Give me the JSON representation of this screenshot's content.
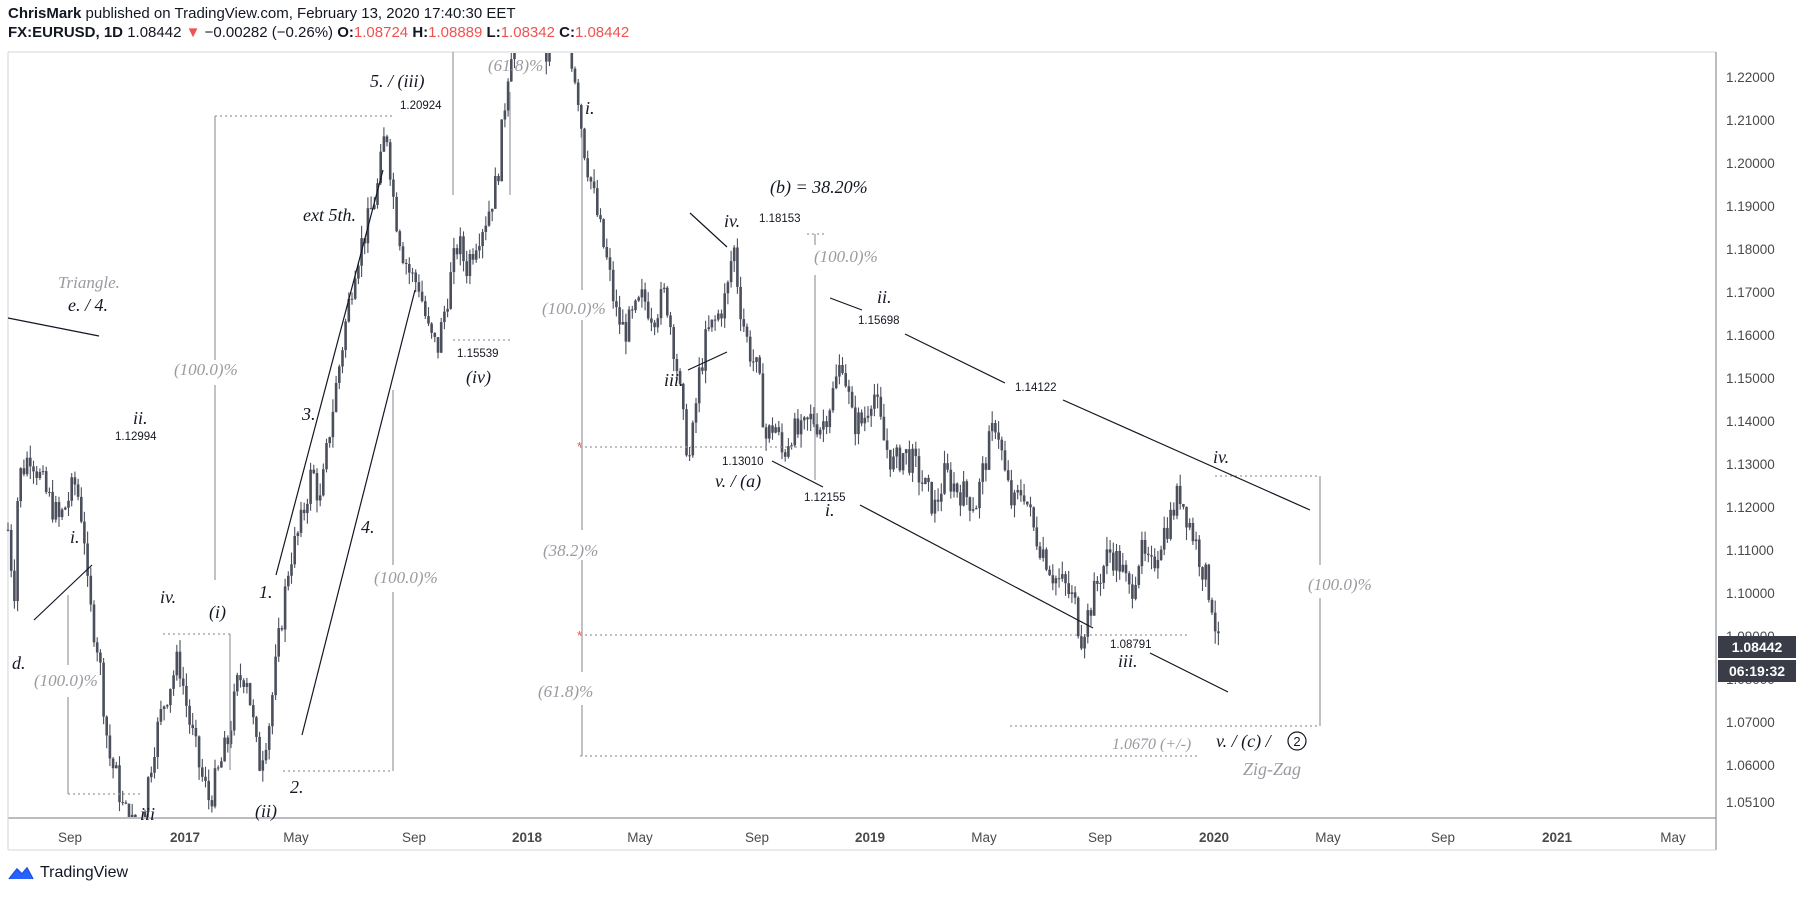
{
  "header": {
    "author": "ChrisMark",
    "published": "published on TradingView.com, February 13, 2020 17:40:30 EET",
    "symbol": "FX:EURUSD, 1D",
    "last": "1.08442",
    "arrow": "▼",
    "change": "−0.00282 (−0.26%)",
    "o_label": "O:",
    "o_value": "1.08724",
    "h_label": "H:",
    "h_value": "1.08889",
    "l_label": "L:",
    "l_value": "1.08342",
    "c_label": "C:",
    "c_value": "1.08442"
  },
  "footer": {
    "brand": "TradingView",
    "logo_icon": "tradingview-logo-icon"
  },
  "price_badges": {
    "last_price": "1.08442",
    "countdown": "06:19:32"
  },
  "colors": {
    "candles": "#4b4f5c",
    "accent_red": "#ef5350",
    "grid": "#ffffff",
    "percent_text": "#9a9aa0",
    "badge_bg": "#3a3d48"
  },
  "chart_data": {
    "type": "candlestick",
    "symbol": "FX:EURUSD",
    "interval": "1D",
    "y_axis_labels": [
      "1.22000",
      "1.21000",
      "1.20000",
      "1.19000",
      "1.18000",
      "1.17000",
      "1.16000",
      "1.15000",
      "1.14000",
      "1.13000",
      "1.12000",
      "1.11000",
      "1.10000",
      "1.09000",
      "1.08000",
      "1.07000",
      "1.06000",
      "1.05100"
    ],
    "x_axis_labels": [
      "Sep",
      "2017",
      "May",
      "Sep",
      "2018",
      "May",
      "Sep",
      "2019",
      "May",
      "Sep",
      "2020",
      "May",
      "Sep",
      "2021",
      "May"
    ],
    "ylim": [
      1.043,
      1.2275
    ],
    "price_path": [
      [
        0,
        1.115
      ],
      [
        0.3,
        1.1
      ],
      [
        0.5,
        1.127
      ],
      [
        1.1,
        1.133
      ],
      [
        1.8,
        1.124
      ],
      [
        2.5,
        1.117
      ],
      [
        3.0,
        1.123
      ],
      [
        3.3,
        1.126
      ],
      [
        3.7,
        1.115
      ],
      [
        3.9,
        1.099
      ],
      [
        4.4,
        1.087
      ],
      [
        4.9,
        1.063
      ],
      [
        5.3,
        1.057
      ],
      [
        5.6,
        1.05
      ],
      [
        6.0,
        1.047
      ],
      [
        6.3,
        1.043
      ],
      [
        6.6,
        1.05
      ],
      [
        7.1,
        1.065
      ],
      [
        7.6,
        1.075
      ],
      [
        8.3,
        1.085
      ],
      [
        8.8,
        1.071
      ],
      [
        9.4,
        1.058
      ],
      [
        9.8,
        1.052
      ],
      [
        10.2,
        1.058
      ],
      [
        10.7,
        1.066
      ],
      [
        11.2,
        1.08
      ],
      [
        11.6,
        1.082
      ],
      [
        12.2,
        1.06
      ],
      [
        12.7,
        1.07
      ],
      [
        13.2,
        1.09
      ],
      [
        13.7,
        1.108
      ],
      [
        14.2,
        1.115
      ],
      [
        14.8,
        1.129
      ],
      [
        15.2,
        1.121
      ],
      [
        15.7,
        1.14
      ],
      [
        16.4,
        1.162
      ],
      [
        16.9,
        1.177
      ],
      [
        17.5,
        1.186
      ],
      [
        18.0,
        1.195
      ],
      [
        18.4,
        1.209
      ],
      [
        18.8,
        1.19
      ],
      [
        19.2,
        1.18
      ],
      [
        19.6,
        1.174
      ],
      [
        20.0,
        1.172
      ],
      [
        20.5,
        1.16
      ],
      [
        20.9,
        1.157
      ],
      [
        21.4,
        1.17
      ],
      [
        21.9,
        1.182
      ],
      [
        22.3,
        1.176
      ],
      [
        22.8,
        1.183
      ],
      [
        23.3,
        1.188
      ],
      [
        23.8,
        1.196
      ],
      [
        24.4,
        1.225
      ],
      [
        25.0,
        1.24
      ],
      [
        25.5,
        1.239
      ],
      [
        26.2,
        1.225
      ],
      [
        26.8,
        1.235
      ],
      [
        27.3,
        1.228
      ],
      [
        27.7,
        1.218
      ],
      [
        28.0,
        1.205
      ],
      [
        28.4,
        1.195
      ],
      [
        28.8,
        1.185
      ],
      [
        29.2,
        1.176
      ],
      [
        29.6,
        1.165
      ],
      [
        30.0,
        1.161
      ],
      [
        30.5,
        1.165
      ],
      [
        30.9,
        1.169
      ],
      [
        31.4,
        1.165
      ],
      [
        32.0,
        1.17
      ],
      [
        32.5,
        1.155
      ],
      [
        32.9,
        1.138
      ],
      [
        33.2,
        1.131
      ],
      [
        33.6,
        1.15
      ],
      [
        34.0,
        1.16
      ],
      [
        34.5,
        1.164
      ],
      [
        35.0,
        1.17
      ],
      [
        35.3,
        1.182
      ],
      [
        35.6,
        1.168
      ],
      [
        36.0,
        1.158
      ],
      [
        36.5,
        1.151
      ],
      [
        36.9,
        1.136
      ],
      [
        37.3,
        1.14
      ],
      [
        37.7,
        1.132
      ],
      [
        38.1,
        1.138
      ],
      [
        38.6,
        1.137
      ],
      [
        39.1,
        1.141
      ],
      [
        39.6,
        1.139
      ],
      [
        40.1,
        1.146
      ],
      [
        40.6,
        1.155
      ],
      [
        41.1,
        1.14
      ],
      [
        41.6,
        1.14
      ],
      [
        42.1,
        1.148
      ],
      [
        42.6,
        1.136
      ],
      [
        43.1,
        1.13
      ],
      [
        43.6,
        1.133
      ],
      [
        44.1,
        1.13
      ],
      [
        44.6,
        1.125
      ],
      [
        45.1,
        1.12
      ],
      [
        45.6,
        1.128
      ],
      [
        46.1,
        1.125
      ],
      [
        46.6,
        1.123
      ],
      [
        47.1,
        1.121
      ],
      [
        47.6,
        1.132
      ],
      [
        48.1,
        1.141
      ],
      [
        48.5,
        1.128
      ],
      [
        48.9,
        1.12
      ],
      [
        49.4,
        1.125
      ],
      [
        49.9,
        1.115
      ],
      [
        50.4,
        1.11
      ],
      [
        50.9,
        1.104
      ],
      [
        51.4,
        1.102
      ],
      [
        51.9,
        1.098
      ],
      [
        52.2,
        1.09
      ],
      [
        52.6,
        1.096
      ],
      [
        53.1,
        1.104
      ],
      [
        53.6,
        1.11
      ],
      [
        54.1,
        1.107
      ],
      [
        54.6,
        1.1
      ],
      [
        55.1,
        1.11
      ],
      [
        55.6,
        1.105
      ],
      [
        56.1,
        1.113
      ],
      [
        56.6,
        1.118
      ],
      [
        57.0,
        1.124
      ],
      [
        57.4,
        1.118
      ],
      [
        57.8,
        1.112
      ],
      [
        58.2,
        1.105
      ],
      [
        58.6,
        1.098
      ],
      [
        59.0,
        1.084
      ]
    ],
    "price_labels": [
      "1.12994",
      "1.20924",
      "1.15539",
      "1.18153",
      "1.13010",
      "1.12155",
      "1.15698",
      "1.14122",
      "1.08791"
    ],
    "wave_labels": [
      "ii.",
      "i.",
      "d.",
      "iv.",
      "iii",
      "(i)",
      "(ii)",
      "1.",
      "2.",
      "3.",
      "4.",
      "ext 5th.",
      "5. / (iii)",
      "(iv)",
      "i.",
      "iii.",
      "iv.",
      "v. / (a)",
      "(b) = 38.20%",
      "i.",
      "ii.",
      "iii.",
      "iv.",
      "v. / (c) /",
      "2"
    ],
    "annotations": [
      "Triangle.",
      "e. / 4.",
      "Zig-Zag",
      "1.0670 (+/-)"
    ],
    "fib_labels": [
      "(100.0)%",
      "(100.0)%",
      "(100.0)%",
      "(61.8)%",
      "(100.0)%",
      "(38.2)%",
      "(61.8)%",
      "(100.0)%",
      "(100.0)%"
    ]
  }
}
